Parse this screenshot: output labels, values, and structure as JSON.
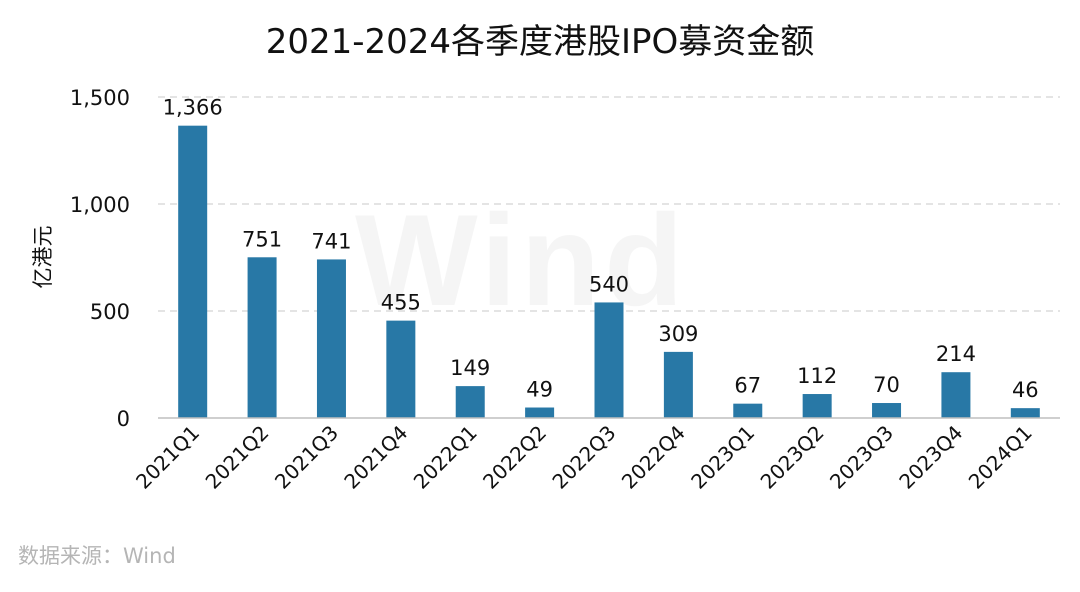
{
  "title": "2021-2024各季度港股IPO募资金额",
  "source": "数据来源：Wind",
  "watermark": "Wind",
  "colors": {
    "bar": "#2878a6",
    "grid": "#d4d4d4",
    "axis": "#bfbfbf",
    "text": "#111111",
    "source": "#b5b5b5"
  },
  "chart_data": {
    "type": "bar",
    "title": "2021-2024各季度港股IPO募资金额",
    "xlabel": "",
    "ylabel": "亿港元",
    "ylim": [
      0,
      1500
    ],
    "yticks": [
      0,
      500,
      1000,
      1500
    ],
    "ytick_labels": [
      "0",
      "500",
      "1,000",
      "1,500"
    ],
    "grid": "horizontal dashed",
    "legend": "none",
    "categories": [
      "2021Q1",
      "2021Q2",
      "2021Q3",
      "2021Q4",
      "2022Q1",
      "2022Q2",
      "2022Q3",
      "2022Q4",
      "2023Q1",
      "2023Q2",
      "2023Q3",
      "2023Q4",
      "2024Q1"
    ],
    "values": [
      1366,
      751,
      741,
      455,
      149,
      49,
      540,
      309,
      67,
      112,
      70,
      214,
      46
    ],
    "data_labels": [
      "1,366",
      "751",
      "741",
      "455",
      "149",
      "49",
      "540",
      "309",
      "67",
      "112",
      "70",
      "214",
      "46"
    ]
  }
}
